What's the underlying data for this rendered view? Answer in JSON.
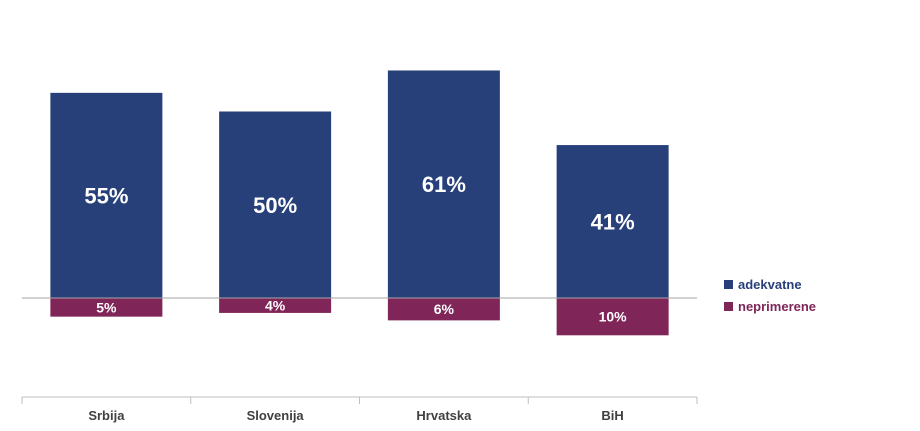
{
  "chart_data": {
    "type": "bar",
    "stacked": "diverging",
    "categories": [
      "Srbija",
      "Slovenija",
      "Hrvatska",
      "BiH"
    ],
    "series": [
      {
        "name": "adekvatne",
        "values": [
          55,
          50,
          61,
          41
        ],
        "labels": [
          "55%",
          "50%",
          "61%",
          "41%"
        ],
        "color": "#27407A",
        "direction": "up"
      },
      {
        "name": "neprimerene",
        "values": [
          5,
          4,
          6,
          10
        ],
        "labels": [
          "5%",
          "4%",
          "6%",
          "10%"
        ],
        "color": "#7F2558",
        "direction": "down"
      }
    ],
    "ylim": [
      -25,
      65
    ],
    "unit": "%",
    "grid": false,
    "legend_position": "right",
    "title": "",
    "xlabel": "",
    "ylabel": ""
  }
}
